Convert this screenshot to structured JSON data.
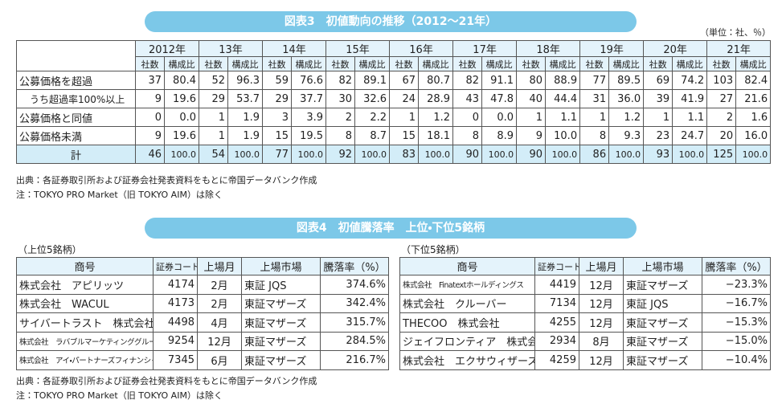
{
  "table1": {
    "title": "図表3　初値動向の推移（2012～21年）",
    "unit": "（単位：社、％）",
    "years": [
      "2012年",
      "13年",
      "14年",
      "15年",
      "16年",
      "17年",
      "18年",
      "19年",
      "20年",
      "21年"
    ],
    "sub_headers": [
      "社数",
      "構成比"
    ],
    "rows": [
      {
        "label": "公募価格を超過",
        "values": [
          "37",
          "80.4",
          "52",
          "96.3",
          "59",
          "76.6",
          "82",
          "89.1",
          "67",
          "80.7",
          "82",
          "91.1",
          "80",
          "88.9",
          "77",
          "89.5",
          "69",
          "74.2",
          "103",
          "82.4"
        ]
      },
      {
        "label": "うち超過率100%以上",
        "values": [
          "9",
          "19.6",
          "29",
          "53.7",
          "29",
          "37.7",
          "30",
          "32.6",
          "24",
          "28.9",
          "43",
          "47.8",
          "40",
          "44.4",
          "31",
          "36.0",
          "39",
          "41.9",
          "27",
          "21.6"
        ]
      },
      {
        "label": "公募価格と同値",
        "values": [
          "0",
          "0.0",
          "1",
          "1.9",
          "3",
          "3.9",
          "2",
          "2.2",
          "1",
          "1.2",
          "0",
          "0.0",
          "1",
          "1.1",
          "1",
          "1.2",
          "1",
          "1.1",
          "2",
          "1.6"
        ]
      },
      {
        "label": "公募価格未満",
        "values": [
          "9",
          "19.6",
          "1",
          "1.9",
          "15",
          "19.5",
          "8",
          "8.7",
          "15",
          "18.1",
          "8",
          "8.9",
          "9",
          "10.0",
          "8",
          "9.3",
          "23",
          "24.7",
          "20",
          "16.0"
        ]
      },
      {
        "label": "計",
        "values": [
          "46",
          "100.0",
          "54",
          "100.0",
          "77",
          "100.0",
          "92",
          "100.0",
          "83",
          "100.0",
          "90",
          "100.0",
          "90",
          "100.0",
          "86",
          "100.0",
          "93",
          "100.0",
          "125",
          "100.0"
        ]
      }
    ],
    "notes": [
      "出典：各証券取引所および証券会社発表資料をもとに帝国データバンク作成",
      "注：TOKYO PRO Market（旧 TOKYO AIM）は除く"
    ]
  },
  "table2": {
    "title": "図表4　初値騰落率　上位・下位5銘柄",
    "headers": [
      "商号",
      "証券コード",
      "上場月",
      "上場市場",
      "騰落率（%）"
    ],
    "top": {
      "label": "（上位5銘柄）",
      "rows": [
        [
          "株式会社　アピリッツ",
          "4174",
          "2月",
          "東証 JQS",
          "374.6%"
        ],
        [
          "株式会社　WACUL",
          "4173",
          "2月",
          "東証マザーズ",
          "342.4%"
        ],
        [
          "サイバートラスト　株式会社",
          "4498",
          "4月",
          "東証マザーズ",
          "315.7%"
        ],
        [
          "株式会社　ラバブルマーケティンググループ",
          "9254",
          "12月",
          "東証マザーズ",
          "284.5%"
        ],
        [
          "株式会社　アイ・パートナーズフィナンシャル",
          "7345",
          "6月",
          "東証マザーズ",
          "216.7%"
        ]
      ]
    },
    "bottom": {
      "label": "（下位5銘柄）",
      "rows": [
        [
          "株式会社　Finatextホールディングス",
          "4419",
          "12月",
          "東証マザーズ",
          "−23.3%"
        ],
        [
          "株式会社　クルーバー",
          "7134",
          "12月",
          "東証 JQS",
          "−16.7%"
        ],
        [
          "THECOO　株式会社",
          "4255",
          "12月",
          "東証マザーズ",
          "−15.3%"
        ],
        [
          "ジェイフロンティア　株式会社",
          "2934",
          "8月",
          "東証マザーズ",
          "−15.0%"
        ],
        [
          "株式会社　エクサウィザーズ",
          "4259",
          "12月",
          "東証マザーズ",
          "−10.4%"
        ]
      ]
    },
    "notes": [
      "出典：各証券取引所および証券会社発表資料をもとに帝国データバンク作成",
      "注：TOKYO PRO Market（旧 TOKYO AIM）は除く"
    ]
  }
}
